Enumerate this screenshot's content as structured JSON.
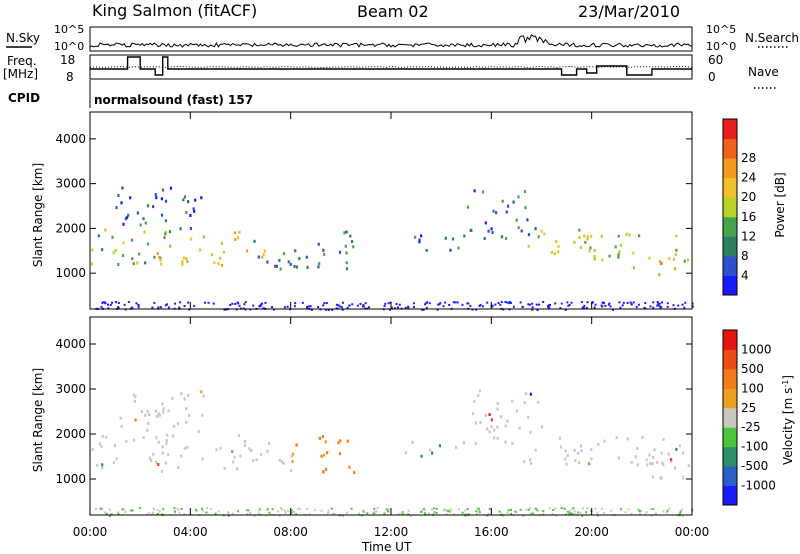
{
  "header": {
    "station": "King Salmon (fitACF)",
    "beam": "Beam 02",
    "date": "23/Mar/2010"
  },
  "summary": {
    "nsky_label": "N.Sky",
    "nsearch_label": "N.Search",
    "freq_label": "Freq.",
    "freq_unit": "[MHz]",
    "nave_label": "Nave",
    "cpid_label": "CPID",
    "cpid_value": "normalsound (fast) 157",
    "left_ticks_top": [
      "10^5",
      "10^0"
    ],
    "right_ticks_top": [
      "10^5",
      "10^0"
    ],
    "freq_ticks": [
      "18",
      "8"
    ],
    "nave_ticks": [
      "60",
      "0"
    ]
  },
  "colors": {
    "power": [
      "#1a1aff",
      "#2e4fcf",
      "#2f7f5f",
      "#4aa34a",
      "#b8d22a",
      "#f0c22a",
      "#f59a1f",
      "#f2611b",
      "#e81e1e"
    ],
    "velocity": [
      "#1a1aff",
      "#2a5fc8",
      "#2e8f6a",
      "#4cc43c",
      "#c8c8c0",
      "#f0a020",
      "#f57a1a",
      "#f04a16",
      "#e81414"
    ],
    "frame": "#000000"
  },
  "chart_data": [
    {
      "type": "heatmap",
      "name": "power",
      "ylabel": "Slant Range [km]",
      "ylim": [
        200,
        4600
      ],
      "yticks": [
        "1000",
        "2000",
        "3000",
        "4000"
      ],
      "colorbar_label": "Power [dB]",
      "colorbar_ticks": [
        "4",
        "8",
        "12",
        "16",
        "20",
        "24",
        "28"
      ],
      "clim": [
        0,
        30
      ],
      "regions": [
        {
          "t": [
            0.0,
            3.2
          ],
          "r": [
            1200,
            2000
          ],
          "v": 14
        },
        {
          "t": [
            1.0,
            4.5
          ],
          "r": [
            2000,
            3000
          ],
          "v": 6
        },
        {
          "t": [
            2.5,
            7.0
          ],
          "r": [
            1200,
            2000
          ],
          "v": 18
        },
        {
          "t": [
            6.5,
            10.5
          ],
          "r": [
            1100,
            2000
          ],
          "v": 8
        },
        {
          "t": [
            12.5,
            15.0
          ],
          "r": [
            1500,
            1900
          ],
          "v": 6
        },
        {
          "t": [
            15.0,
            18.0
          ],
          "r": [
            1800,
            3000
          ],
          "v": 7
        },
        {
          "t": [
            17.0,
            24.0
          ],
          "r": [
            1300,
            2000
          ],
          "v": 15
        },
        {
          "t": [
            21.5,
            23.8
          ],
          "r": [
            1000,
            1500
          ],
          "v": 22
        }
      ]
    },
    {
      "type": "heatmap",
      "name": "velocity",
      "ylabel": "Slant Range [km]",
      "xlabel": "Time UT",
      "ylim": [
        200,
        4600
      ],
      "yticks": [
        "1000",
        "2000",
        "3000",
        "4000"
      ],
      "xticks": [
        "00:00",
        "04:00",
        "08:00",
        "12:00",
        "16:00",
        "20:00",
        "00:00"
      ],
      "colorbar_label": "Velocity [m s^-1]",
      "colorbar_ticks": [
        "1000",
        "500",
        "100",
        "25",
        "-25",
        "-100",
        "-500",
        "-1000"
      ],
      "clim": [
        -1000,
        1000
      ]
    }
  ]
}
